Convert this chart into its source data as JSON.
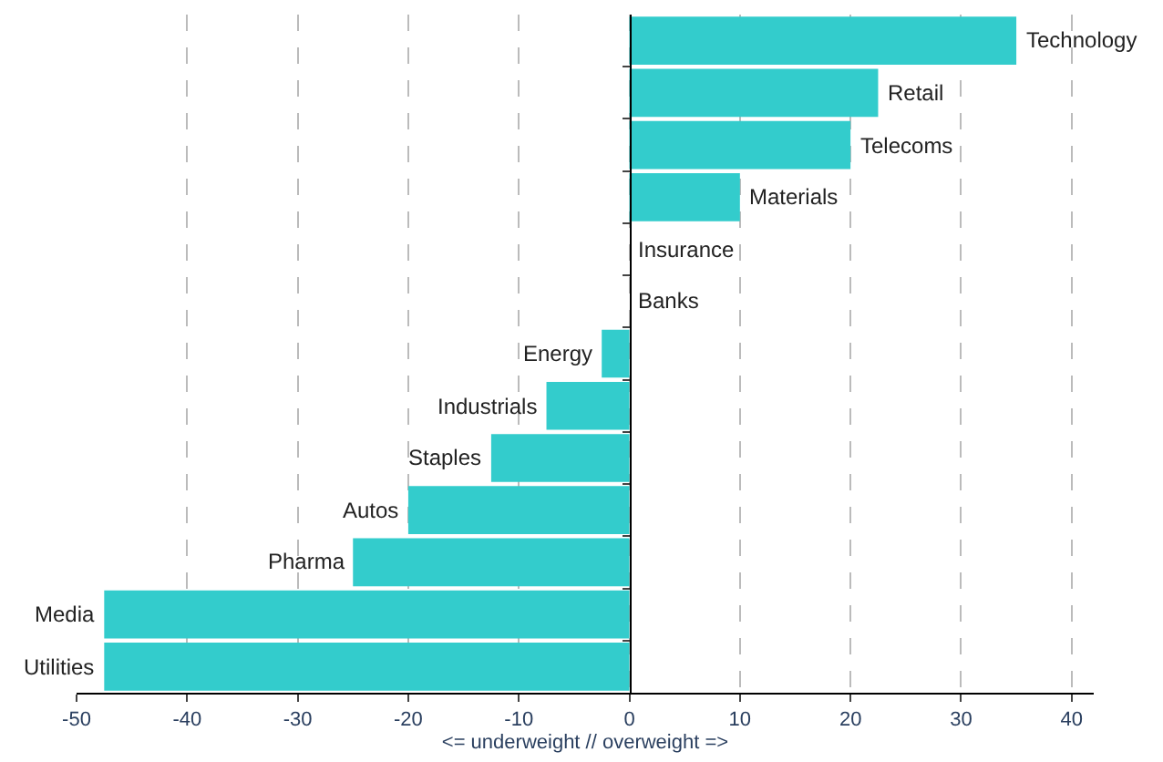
{
  "chart_data": {
    "type": "bar",
    "orientation": "horizontal",
    "xlabel": "<= underweight // overweight =>",
    "categories": [
      "Technology",
      "Retail",
      "Telecoms",
      "Materials",
      "Insurance",
      "Banks",
      "Energy",
      "Industrials",
      "Staples",
      "Autos",
      "Pharma",
      "Media",
      "Utilities"
    ],
    "values": [
      35,
      22.5,
      20,
      10,
      0,
      0,
      -2.5,
      -7.5,
      -12.5,
      -20,
      -25,
      -47.5,
      -47.5
    ],
    "color": "#33cccc",
    "xlim": [
      -50,
      42
    ],
    "xticks": [
      -50,
      -40,
      -30,
      -20,
      -10,
      0,
      10,
      20,
      30,
      40
    ],
    "grid": "x",
    "legend": false,
    "tick_labels": "x"
  }
}
